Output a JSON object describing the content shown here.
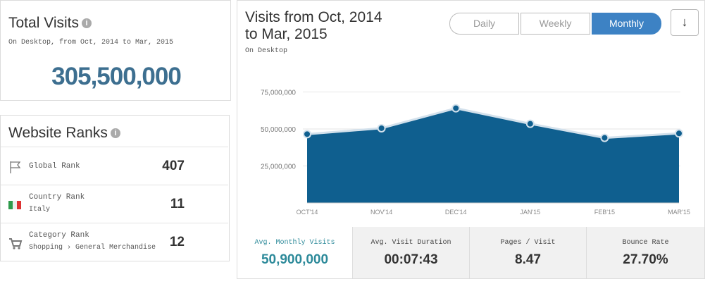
{
  "total_visits": {
    "title": "Total Visits",
    "subtitle": "On Desktop, from Oct, 2014 to Mar, 2015",
    "value": "305,500,000"
  },
  "website_ranks": {
    "title": "Website Ranks",
    "rows": [
      {
        "label": "Global Rank",
        "value": 407
      },
      {
        "label": "Country Rank",
        "sublabel": "Italy",
        "value": 11
      },
      {
        "label": "Category Rank",
        "sublabel": "Shopping › General Merchandise",
        "value": 12
      }
    ]
  },
  "controls": {
    "buttons": [
      "Daily",
      "Weekly",
      "Monthly"
    ],
    "active": 2
  },
  "chart_data": {
    "type": "area",
    "title": "Visits from Oct, 2014 to Mar, 2015",
    "subtitle": "On Desktop",
    "categories": [
      "OCT'14",
      "NOV'14",
      "DEC'14",
      "JAN'15",
      "FEB'15",
      "MAR'15"
    ],
    "values": [
      46500000,
      50500000,
      64000000,
      53500000,
      44000000,
      47000000
    ],
    "color": "#0f5f8f",
    "line_color": "#d3e1ec",
    "ylim": [
      0,
      80000000
    ],
    "yticks": [
      {
        "value": 25000000,
        "label": "25,000,000"
      },
      {
        "value": 50000000,
        "label": "50,000,000"
      },
      {
        "value": 75000000,
        "label": "75,000,000"
      }
    ],
    "grid": true
  },
  "metrics": [
    {
      "label": "Avg. Monthly Visits",
      "value": "50,900,000"
    },
    {
      "label": "Avg. Visit Duration",
      "value": "00:07:43"
    },
    {
      "label": "Pages / Visit",
      "value": "8.47"
    },
    {
      "label": "Bounce Rate",
      "value": "27.70%"
    }
  ]
}
